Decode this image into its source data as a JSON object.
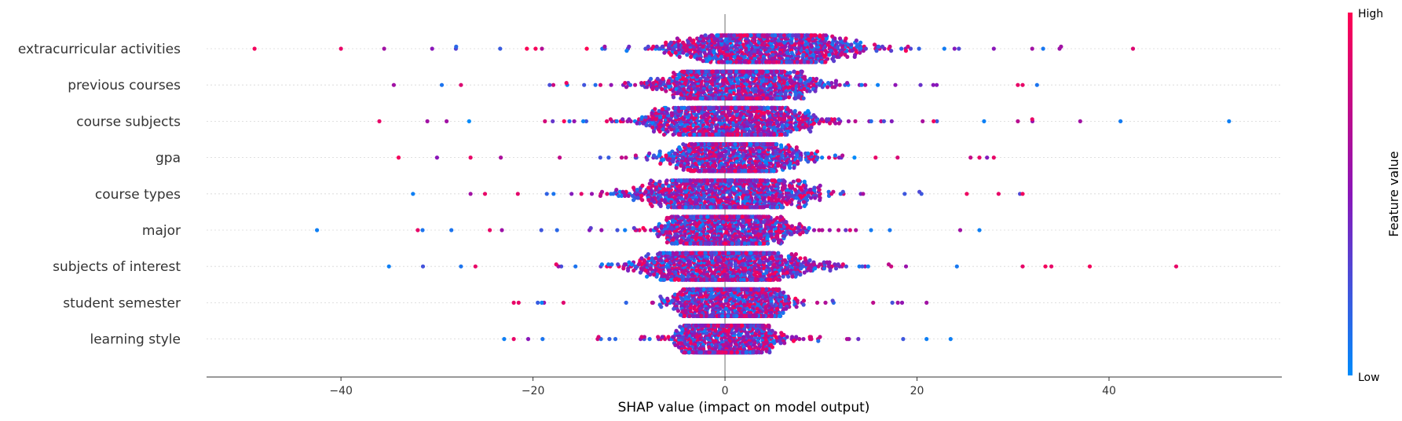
{
  "chart_data": {
    "type": "scatter",
    "subtype": "shap-beeswarm",
    "title": "",
    "xlabel": "SHAP value (impact on model output)",
    "xlim": [
      -54,
      58
    ],
    "xticks": [
      -40,
      -20,
      0,
      20,
      40
    ],
    "xtick_labels": [
      "−40",
      "−20",
      "0",
      "20",
      "40"
    ],
    "zero_line": true,
    "grid": false,
    "colorbar": {
      "title": "Feature value",
      "high_label": "High",
      "low_label": "Low",
      "high_color": "#ff0052",
      "mid_color": "#8a16b9",
      "low_color": "#008bfb",
      "placement": "right"
    },
    "features": [
      {
        "name": "extracurricular activities",
        "range": [
          -49,
          42.5
        ],
        "center": 4,
        "spread": 9,
        "outliers": [
          {
            "x": -49,
            "f": 0.95
          },
          {
            "x": -40,
            "f": 0.9
          },
          {
            "x": -35.5,
            "f": 0.6
          },
          {
            "x": -30.5,
            "f": 0.5
          },
          {
            "x": -28,
            "f": 0.15
          },
          {
            "x": 28,
            "f": 0.5
          },
          {
            "x": 32,
            "f": 0.6
          },
          {
            "x": 35,
            "f": 0.6
          },
          {
            "x": 42.5,
            "f": 0.85
          }
        ]
      },
      {
        "name": "previous courses",
        "range": [
          -34.5,
          32.5
        ],
        "center": 1.5,
        "spread": 7,
        "outliers": [
          {
            "x": -34.5,
            "f": 0.6
          },
          {
            "x": -29.5,
            "f": 0.1
          },
          {
            "x": -27.5,
            "f": 0.85
          },
          {
            "x": 30.5,
            "f": 0.9
          },
          {
            "x": 31,
            "f": 0.9
          },
          {
            "x": 32.5,
            "f": 0.1
          }
        ]
      },
      {
        "name": "course subjects",
        "range": [
          -36,
          52.5
        ],
        "center": 0.5,
        "spread": 8,
        "outliers": [
          {
            "x": -36,
            "f": 0.9
          },
          {
            "x": -31,
            "f": 0.6
          },
          {
            "x": -29,
            "f": 0.6
          },
          {
            "x": 30.5,
            "f": 0.7
          },
          {
            "x": 32,
            "f": 0.9
          },
          {
            "x": 37,
            "f": 0.6
          },
          {
            "x": 52.5,
            "f": 0.05
          }
        ]
      },
      {
        "name": "gpa",
        "range": [
          -34,
          28
        ],
        "center": 1,
        "spread": 6,
        "outliers": [
          {
            "x": -34,
            "f": 0.95
          },
          {
            "x": -30,
            "f": 0.5
          },
          {
            "x": -26.5,
            "f": 0.9
          },
          {
            "x": 26.5,
            "f": 0.9
          },
          {
            "x": 28,
            "f": 0.9
          }
        ]
      },
      {
        "name": "course types",
        "range": [
          -32.5,
          31
        ],
        "center": 0,
        "spread": 8,
        "outliers": [
          {
            "x": -32.5,
            "f": 0.05
          },
          {
            "x": -26.5,
            "f": 0.6
          },
          {
            "x": -25,
            "f": 0.9
          },
          {
            "x": 28.5,
            "f": 0.9
          },
          {
            "x": 31,
            "f": 0.95
          }
        ]
      },
      {
        "name": "major",
        "range": [
          -42.5,
          26.5
        ],
        "center": 0,
        "spread": 6,
        "outliers": [
          {
            "x": -42.5,
            "f": 0.05
          },
          {
            "x": -32,
            "f": 0.9
          },
          {
            "x": -31.5,
            "f": 0.1
          },
          {
            "x": -28.5,
            "f": 0.1
          },
          {
            "x": -24.5,
            "f": 0.9
          },
          {
            "x": 24.5,
            "f": 0.6
          },
          {
            "x": 26.5,
            "f": 0.05
          }
        ]
      },
      {
        "name": "subjects of interest",
        "range": [
          -35,
          47
        ],
        "center": 0,
        "spread": 8,
        "outliers": [
          {
            "x": -35,
            "f": 0.05
          },
          {
            "x": -27.5,
            "f": 0.1
          },
          {
            "x": -26,
            "f": 0.9
          },
          {
            "x": 31,
            "f": 0.9
          },
          {
            "x": 34,
            "f": 0.9
          },
          {
            "x": 38,
            "f": 0.95
          },
          {
            "x": 47,
            "f": 0.9
          }
        ]
      },
      {
        "name": "student semester",
        "range": [
          -22,
          21
        ],
        "center": 0.5,
        "spread": 5,
        "outliers": [
          {
            "x": -22,
            "f": 0.9
          },
          {
            "x": -21.5,
            "f": 0.9
          },
          {
            "x": -19.5,
            "f": 0.2
          },
          {
            "x": 18,
            "f": 0.6
          },
          {
            "x": 21,
            "f": 0.6
          }
        ]
      },
      {
        "name": "learning style",
        "range": [
          -23,
          23.5
        ],
        "center": 0,
        "spread": 4.5,
        "outliers": [
          {
            "x": -23,
            "f": 0.05
          },
          {
            "x": -22,
            "f": 0.9
          },
          {
            "x": -20.5,
            "f": 0.5
          },
          {
            "x": -19,
            "f": 0.1
          },
          {
            "x": 21,
            "f": 0.05
          },
          {
            "x": 23.5,
            "f": 0.05
          }
        ]
      }
    ]
  }
}
